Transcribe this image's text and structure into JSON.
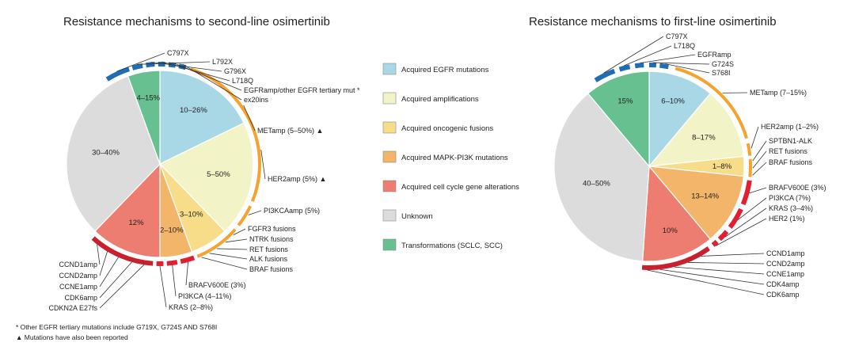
{
  "left_chart": {
    "title": "Resistance mechanisms to second-line osimertinib",
    "segments": [
      {
        "category": "egfr",
        "label": "10–26%"
      },
      {
        "category": "amp",
        "label": "5–50%"
      },
      {
        "category": "fusion",
        "label": "3–10%"
      },
      {
        "category": "mapk",
        "label": "2–10%"
      },
      {
        "category": "cellcycle",
        "label": "12%"
      },
      {
        "category": "unknown",
        "label": "30–40%"
      },
      {
        "category": "transform",
        "label": "4–15%"
      }
    ],
    "callouts": {
      "egfr": [
        "C797X",
        "L792X",
        "G796X",
        "L718Q",
        "EGFRamp/other EGFR tertiary mut *",
        "ex20ins"
      ],
      "amp": [
        "METamp (5–50%) ▲",
        "HER2amp (5%) ▲",
        "PI3KCAamp (5%)"
      ],
      "fusion": [
        "FGFR3 fusions",
        "NTRK fusions",
        "RET fusions",
        "ALK fusions",
        "BRAF fusions"
      ],
      "mapk": [
        "BRAFV600E (3%)",
        "PI3KCA (4–11%)",
        "KRAS (2–8%)"
      ],
      "cellcycle": [
        "CCND1amp",
        "CCND2amp",
        "CCNE1amp",
        "CDK6amp",
        "CDKN2A E27fs"
      ]
    }
  },
  "right_chart": {
    "title": "Resistance mechanisms to first-line osimertinib",
    "segments": [
      {
        "category": "egfr",
        "label": "6–10%"
      },
      {
        "category": "amp",
        "label": "8–17%"
      },
      {
        "category": "fusion",
        "label": "1–8%"
      },
      {
        "category": "mapk",
        "label": "13–14%"
      },
      {
        "category": "cellcycle",
        "label": "10%"
      },
      {
        "category": "unknown",
        "label": "40–50%"
      },
      {
        "category": "transform",
        "label": "15%"
      }
    ],
    "callouts": {
      "egfr": [
        "C797X",
        "L718Q",
        "EGFRamp",
        "G724S",
        "S768I"
      ],
      "amp": [
        "METamp (7–15%)",
        "HER2amp (1–2%)"
      ],
      "fusion": [
        "SPTBN1-ALK",
        "RET fusions",
        "BRAF fusions"
      ],
      "mapk": [
        "BRAFV600E (3%)",
        "PI3KCA (7%)",
        "KRAS (3–4%)",
        "HER2 (1%)"
      ],
      "cellcycle": [
        "CCND1amp",
        "CCND2amp",
        "CCNE1amp",
        "CDK4amp",
        "CDK6amp"
      ]
    }
  },
  "legend": [
    {
      "category": "egfr",
      "label": "Acquired EGFR mutations",
      "color": "#a8d8e6"
    },
    {
      "category": "amp",
      "label": "Acquired amplifications",
      "color": "#f3f3c8"
    },
    {
      "category": "fusion",
      "label": "Acquired oncogenic fusions",
      "color": "#f7dd8a"
    },
    {
      "category": "mapk",
      "label": "Acquired MAPK-PI3K mutations",
      "color": "#f3b56a"
    },
    {
      "category": "cellcycle",
      "label": "Acquired cell cycle gene alterations",
      "color": "#ec7d70"
    },
    {
      "category": "unknown",
      "label": "Unknown",
      "color": "#dcdcdc"
    },
    {
      "category": "transform",
      "label": "Transformations (SCLC, SCC)",
      "color": "#66c08f"
    }
  ],
  "arc_colors": {
    "egfr": "#1f6db3",
    "amp": "#f5a22e",
    "fusion": "#f5a22e",
    "mapk": "#e31e2e",
    "cellcycle": "#c8202c"
  },
  "footnotes": [
    "* Other EGFR tertiary mutations include G719X, G724S AND S768I",
    "▲ Mutations have also been reported"
  ]
}
